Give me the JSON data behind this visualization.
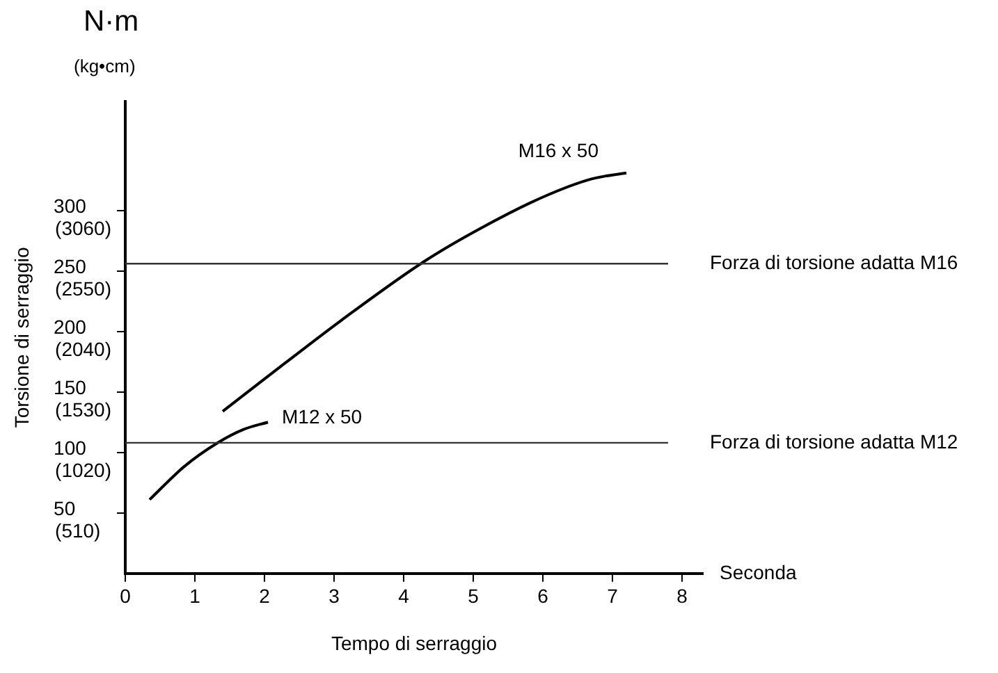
{
  "chart_data": {
    "type": "line",
    "title": "N·m",
    "subtitle": "(kg•cm)",
    "xlabel": "Tempo di serraggio",
    "ylabel": "Torsione di serraggio",
    "annotations": [
      "Seconda"
    ],
    "xlim": [
      0,
      8.3
    ],
    "xticks": [
      0,
      1,
      2,
      3,
      4,
      5,
      6,
      7,
      8
    ],
    "ylim": [
      0,
      390
    ],
    "yticks": [
      50,
      100,
      150,
      200,
      250,
      300
    ],
    "y2lim": [
      0,
      3978
    ],
    "y2ticks": [
      {
        "value": 510,
        "label": "(510)"
      },
      {
        "value": 1020,
        "label": "(1020)"
      },
      {
        "value": 1530,
        "label": "(1530)"
      },
      {
        "value": 2040,
        "label": "(2040)"
      },
      {
        "value": 2550,
        "label": "(2550)"
      },
      {
        "value": 3060,
        "label": "(3060)"
      }
    ],
    "grid": false,
    "legend": false,
    "marker": "none",
    "line_style": "solid",
    "ref_lines": [
      {
        "axis": "y",
        "value": 256,
        "label": "Forza di torsione adatta M16",
        "color": "#333333"
      },
      {
        "axis": "y",
        "value": 108,
        "label": "Forza di torsione adatta M12",
        "color": "#333333"
      }
    ],
    "series": [
      {
        "name": "M12 x 50",
        "color": "#000000",
        "x": [
          0.35,
          0.84,
          1.33,
          1.7,
          2.05
        ],
        "values": [
          61,
          88,
          108,
          119,
          125
        ]
      },
      {
        "name": "M16 x 50",
        "color": "#000000",
        "x": [
          1.4,
          2.3,
          3.1,
          4.3,
          5.1,
          6.0,
          6.7,
          7.2
        ],
        "values": [
          134,
          174,
          209,
          258,
          285,
          311,
          326,
          331
        ]
      }
    ]
  }
}
